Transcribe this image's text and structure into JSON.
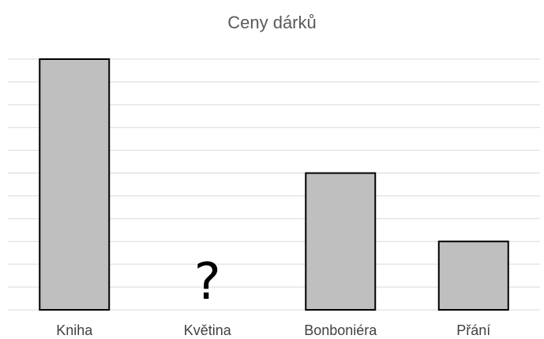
{
  "chart_data": {
    "type": "bar",
    "title": "Ceny dárků",
    "xlabel": "",
    "ylabel": "",
    "categories": [
      "Kniha",
      "Květina",
      "Bonboniéra",
      "Přání"
    ],
    "values": [
      11,
      null,
      6,
      3
    ],
    "unknown_marker": "?",
    "ylim": [
      0,
      11
    ],
    "grid": true,
    "bar_color": "#bfbfbf",
    "bar_edge_color": "#000000",
    "grid_color": "#d9d9d9"
  }
}
